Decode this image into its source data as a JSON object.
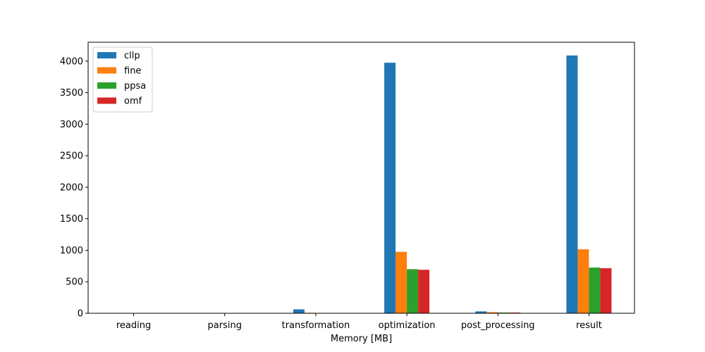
{
  "chart_data": {
    "type": "bar",
    "title": "",
    "xlabel": "Memory [MB]",
    "ylabel": "",
    "categories": [
      "reading",
      "parsing",
      "transformation",
      "optimization",
      "post_processing",
      "result"
    ],
    "series": [
      {
        "name": "cllp",
        "color": "#1f77b4",
        "values": [
          0,
          0,
          62,
          3975,
          30,
          4090
        ]
      },
      {
        "name": "fine",
        "color": "#ff7f0e",
        "values": [
          0,
          0,
          8,
          975,
          18,
          1015
        ]
      },
      {
        "name": "ppsa",
        "color": "#2ca02c",
        "values": [
          0,
          0,
          5,
          700,
          12,
          725
        ]
      },
      {
        "name": "omf",
        "color": "#d62728",
        "values": [
          0,
          0,
          5,
          690,
          12,
          715
        ]
      }
    ],
    "ylim": [
      0,
      4300
    ],
    "yticks": [
      0,
      500,
      1000,
      1500,
      2000,
      2500,
      3000,
      3500,
      4000
    ],
    "grid": false,
    "legend_position": "top-left"
  }
}
